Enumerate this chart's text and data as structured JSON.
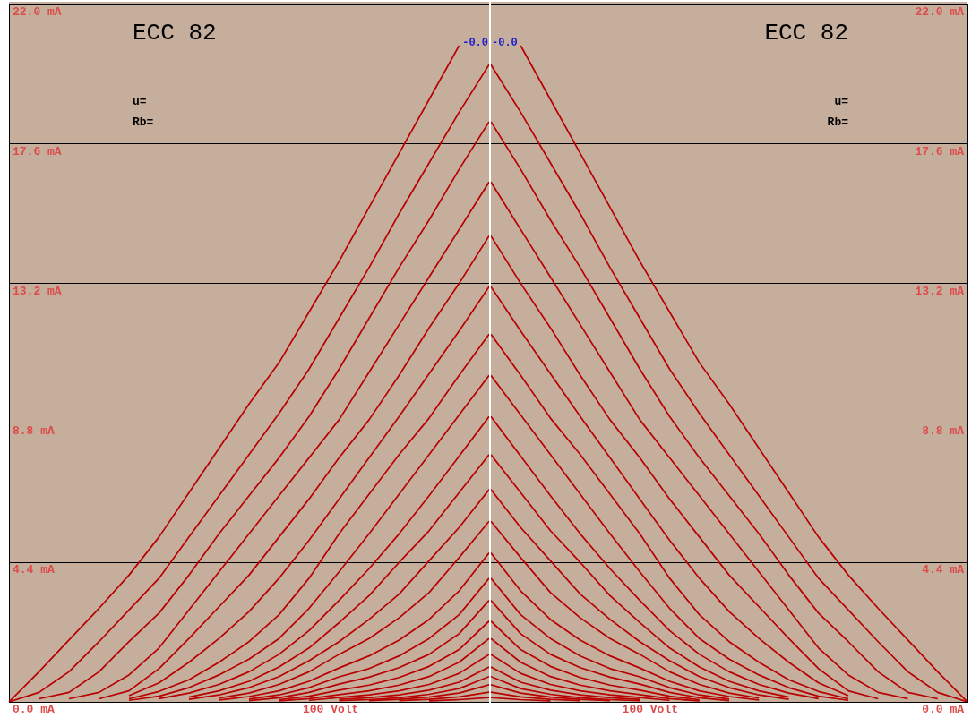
{
  "chart_data": [
    {
      "type": "line",
      "title": "ECC 82",
      "annotations": [
        "u=",
        "Rb=",
        "100 Volt",
        "-0.0"
      ],
      "categories": [
        null,
        null,
        null,
        null,
        null,
        null,
        null,
        null,
        null,
        null,
        null,
        null,
        null,
        null,
        null,
        null,
        null
      ],
      "ylim": [
        0,
        22
      ],
      "yticks": [
        {
          "value": 0,
          "label": "0.0 mA"
        },
        {
          "value": 4.4,
          "label": "4.4 mA"
        },
        {
          "value": 8.8,
          "label": "8.8 mA"
        },
        {
          "value": 13.2,
          "label": "13.2 mA"
        },
        {
          "value": 17.6,
          "label": "17.6 mA"
        },
        {
          "value": 22,
          "label": "22.0 mA"
        }
      ],
      "grid": "y",
      "series": [
        {
          "color": "#b80000",
          "values": [
            0,
            0.95,
            1.95,
            2.95,
            4.0,
            5.2,
            6.6,
            8.0,
            9.4,
            10.7,
            12.3,
            13.9,
            15.6,
            17.3,
            19.0,
            20.7,
            null
          ]
        },
        {
          "color": "#b80000",
          "values": [
            0,
            0.3,
            0.95,
            1.9,
            2.9,
            3.9,
            5.2,
            6.5,
            7.8,
            9.1,
            10.5,
            12.1,
            13.7,
            15.4,
            17.0,
            18.6,
            20.1
          ]
        },
        {
          "color": "#b80000",
          "values": [
            null,
            0.1,
            0.3,
            0.95,
            1.9,
            2.8,
            4.0,
            5.3,
            6.5,
            7.7,
            9.0,
            10.5,
            12.1,
            13.7,
            15.2,
            16.8,
            18.3
          ]
        },
        {
          "color": "#b80000",
          "values": [
            null,
            null,
            0.1,
            0.3,
            0.85,
            1.7,
            2.9,
            4.1,
            5.3,
            6.5,
            7.7,
            8.9,
            10.4,
            11.9,
            13.4,
            14.9,
            16.4
          ]
        },
        {
          "color": "#b80000",
          "values": [
            null,
            null,
            null,
            0.1,
            0.35,
            1.05,
            2.0,
            3.0,
            4.0,
            5.2,
            6.4,
            7.7,
            8.9,
            10.3,
            11.8,
            13.2,
            14.7
          ]
        },
        {
          "color": "#b80000",
          "values": [
            null,
            null,
            null,
            null,
            0.2,
            0.6,
            1.25,
            2.0,
            2.85,
            3.9,
            5.1,
            6.4,
            7.7,
            9.0,
            10.35,
            11.7,
            13.1
          ]
        },
        {
          "color": "#b80000",
          "values": [
            null,
            null,
            null,
            null,
            0.1,
            0.33,
            0.7,
            1.25,
            1.9,
            2.75,
            3.9,
            5.3,
            6.55,
            7.8,
            8.95,
            10.3,
            11.6
          ]
        },
        {
          "color": "#b80000",
          "values": [
            null,
            null,
            null,
            null,
            0.05,
            0.18,
            0.45,
            0.85,
            1.35,
            2.0,
            2.95,
            4.1,
            5.3,
            6.55,
            7.8,
            9.05,
            10.3
          ]
        },
        {
          "color": "#b80000",
          "values": [
            null,
            null,
            null,
            null,
            null,
            0.1,
            0.28,
            0.55,
            0.95,
            1.5,
            2.25,
            3.2,
            4.2,
            5.3,
            6.5,
            7.75,
            9.0
          ]
        },
        {
          "color": "#b80000",
          "values": [
            null,
            null,
            null,
            null,
            null,
            null,
            0.15,
            0.35,
            0.65,
            1.1,
            1.7,
            2.5,
            3.35,
            4.4,
            5.4,
            6.6,
            7.8
          ]
        },
        {
          "color": "#b80000",
          "values": [
            null,
            null,
            null,
            null,
            null,
            null,
            0.08,
            0.22,
            0.45,
            0.8,
            1.3,
            1.9,
            2.6,
            3.4,
            4.45,
            5.5,
            6.7
          ]
        },
        {
          "color": "#b80000",
          "values": [
            null,
            null,
            null,
            null,
            null,
            null,
            null,
            0.12,
            0.28,
            0.55,
            0.95,
            1.5,
            2.0,
            2.65,
            3.45,
            4.55,
            5.7
          ]
        },
        {
          "color": "#b80000",
          "values": [
            null,
            null,
            null,
            null,
            null,
            null,
            null,
            0.06,
            0.17,
            0.35,
            0.65,
            1.07,
            1.45,
            1.95,
            2.6,
            3.5,
            4.7
          ]
        },
        {
          "color": "#b80000",
          "values": [
            null,
            null,
            null,
            null,
            null,
            null,
            null,
            null,
            0.09,
            0.22,
            0.45,
            0.79,
            1.05,
            1.45,
            2.0,
            2.75,
            3.9
          ]
        },
        {
          "color": "#b80000",
          "values": [
            null,
            null,
            null,
            null,
            null,
            null,
            null,
            null,
            0.04,
            0.13,
            0.3,
            0.56,
            0.78,
            1.08,
            1.5,
            2.15,
            3.2
          ]
        },
        {
          "color": "#b80000",
          "values": [
            null,
            null,
            null,
            null,
            null,
            null,
            null,
            null,
            null,
            0.07,
            0.18,
            0.37,
            0.53,
            0.77,
            1.12,
            1.65,
            2.55
          ]
        },
        {
          "color": "#b80000",
          "values": [
            null,
            null,
            null,
            null,
            null,
            null,
            null,
            null,
            null,
            0.03,
            0.1,
            0.23,
            0.35,
            0.53,
            0.8,
            1.25,
            2.0
          ]
        },
        {
          "color": "#b80000",
          "values": [
            null,
            null,
            null,
            null,
            null,
            null,
            null,
            null,
            null,
            null,
            0.05,
            0.14,
            0.22,
            0.35,
            0.55,
            0.9,
            1.5
          ]
        },
        {
          "color": "#b80000",
          "values": [
            null,
            null,
            null,
            null,
            null,
            null,
            null,
            null,
            null,
            null,
            null,
            0.08,
            0.13,
            0.22,
            0.37,
            0.62,
            1.1
          ]
        },
        {
          "color": "#b80000",
          "values": [
            null,
            null,
            null,
            null,
            null,
            null,
            null,
            null,
            null,
            null,
            null,
            0.04,
            0.07,
            0.13,
            0.24,
            0.42,
            0.8
          ]
        },
        {
          "color": "#b80000",
          "values": [
            null,
            null,
            null,
            null,
            null,
            null,
            null,
            null,
            null,
            null,
            null,
            null,
            0.04,
            0.08,
            0.15,
            0.28,
            0.54
          ]
        },
        {
          "color": "#b80000",
          "values": [
            null,
            null,
            null,
            null,
            null,
            null,
            null,
            null,
            null,
            null,
            null,
            null,
            null,
            0.04,
            0.08,
            0.16,
            0.31
          ]
        },
        {
          "color": "#b80000",
          "values": [
            null,
            null,
            null,
            null,
            null,
            null,
            null,
            null,
            null,
            null,
            null,
            null,
            null,
            null,
            0.03,
            0.07,
            0.14
          ]
        }
      ]
    },
    {
      "type": "line",
      "title": "ECC 82",
      "annotations": [
        "u=",
        "Rb=",
        "100 Volt",
        "-0.0"
      ],
      "categories": [
        null,
        null,
        null,
        null,
        null,
        null,
        null,
        null,
        null,
        null,
        null,
        null,
        null,
        null,
        null,
        null,
        null
      ],
      "ylim": [
        0,
        22
      ],
      "yticks": [
        {
          "value": 0,
          "label": "0.0 mA"
        },
        {
          "value": 4.4,
          "label": "4.4 mA"
        },
        {
          "value": 8.8,
          "label": "8.8 mA"
        },
        {
          "value": 13.2,
          "label": "13.2 mA"
        },
        {
          "value": 17.6,
          "label": "17.6 mA"
        },
        {
          "value": 22,
          "label": "22.0 mA"
        }
      ],
      "grid": "y",
      "series": [
        {
          "color": "#b80000",
          "values": [
            null,
            20.7,
            19.0,
            17.3,
            15.6,
            13.9,
            12.3,
            10.7,
            9.4,
            8.0,
            6.6,
            5.2,
            4.0,
            2.95,
            1.95,
            0.95,
            0
          ]
        },
        {
          "color": "#b80000",
          "values": [
            20.1,
            18.6,
            17.0,
            15.4,
            13.7,
            12.1,
            10.5,
            9.1,
            7.8,
            6.5,
            5.2,
            3.9,
            2.9,
            1.9,
            0.95,
            0.3,
            0
          ]
        },
        {
          "color": "#b80000",
          "values": [
            18.3,
            16.8,
            15.2,
            13.7,
            12.1,
            10.5,
            9.0,
            7.7,
            6.5,
            5.3,
            4.0,
            2.8,
            1.9,
            0.95,
            0.3,
            0.1,
            null
          ]
        },
        {
          "color": "#b80000",
          "values": [
            16.4,
            14.9,
            13.4,
            11.9,
            10.4,
            8.9,
            7.7,
            6.5,
            5.3,
            4.1,
            2.9,
            1.7,
            0.85,
            0.3,
            0.1,
            null,
            null
          ]
        },
        {
          "color": "#b80000",
          "values": [
            14.7,
            13.2,
            11.8,
            10.3,
            8.9,
            7.7,
            6.4,
            5.2,
            4.0,
            3.0,
            2.0,
            1.05,
            0.35,
            0.1,
            null,
            null,
            null
          ]
        },
        {
          "color": "#b80000",
          "values": [
            13.1,
            11.7,
            10.35,
            9.0,
            7.7,
            6.4,
            5.1,
            3.9,
            2.85,
            2.0,
            1.25,
            0.6,
            0.2,
            null,
            null,
            null,
            null
          ]
        },
        {
          "color": "#b80000",
          "values": [
            11.6,
            10.3,
            8.95,
            7.8,
            6.55,
            5.3,
            3.9,
            2.75,
            1.9,
            1.25,
            0.7,
            0.33,
            0.1,
            null,
            null,
            null,
            null
          ]
        },
        {
          "color": "#b80000",
          "values": [
            10.3,
            9.05,
            7.8,
            6.55,
            5.3,
            4.1,
            2.95,
            2.0,
            1.35,
            0.85,
            0.45,
            0.18,
            0.05,
            null,
            null,
            null,
            null
          ]
        },
        {
          "color": "#b80000",
          "values": [
            9.0,
            7.75,
            6.5,
            5.3,
            4.2,
            3.2,
            2.25,
            1.5,
            0.95,
            0.55,
            0.28,
            0.1,
            null,
            null,
            null,
            null,
            null
          ]
        },
        {
          "color": "#b80000",
          "values": [
            7.8,
            6.6,
            5.4,
            4.4,
            3.35,
            2.5,
            1.7,
            1.1,
            0.65,
            0.35,
            0.15,
            null,
            null,
            null,
            null,
            null,
            null
          ]
        },
        {
          "color": "#b80000",
          "values": [
            6.7,
            5.5,
            4.45,
            3.4,
            2.6,
            1.9,
            1.3,
            0.8,
            0.45,
            0.22,
            0.08,
            null,
            null,
            null,
            null,
            null,
            null
          ]
        },
        {
          "color": "#b80000",
          "values": [
            5.7,
            4.55,
            3.45,
            2.65,
            2.0,
            1.5,
            0.95,
            0.55,
            0.28,
            0.12,
            null,
            null,
            null,
            null,
            null,
            null,
            null
          ]
        },
        {
          "color": "#b80000",
          "values": [
            4.7,
            3.5,
            2.6,
            1.95,
            1.45,
            1.07,
            0.65,
            0.35,
            0.17,
            0.06,
            null,
            null,
            null,
            null,
            null,
            null,
            null
          ]
        },
        {
          "color": "#b80000",
          "values": [
            3.9,
            2.75,
            2.0,
            1.45,
            1.05,
            0.79,
            0.45,
            0.22,
            0.09,
            null,
            null,
            null,
            null,
            null,
            null,
            null,
            null
          ]
        },
        {
          "color": "#b80000",
          "values": [
            3.2,
            2.15,
            1.5,
            1.08,
            0.78,
            0.56,
            0.3,
            0.13,
            0.04,
            null,
            null,
            null,
            null,
            null,
            null,
            null,
            null
          ]
        },
        {
          "color": "#b80000",
          "values": [
            2.55,
            1.65,
            1.12,
            0.77,
            0.53,
            0.37,
            0.18,
            0.07,
            null,
            null,
            null,
            null,
            null,
            null,
            null,
            null,
            null
          ]
        },
        {
          "color": "#b80000",
          "values": [
            2.0,
            1.25,
            0.8,
            0.53,
            0.35,
            0.23,
            0.1,
            0.03,
            null,
            null,
            null,
            null,
            null,
            null,
            null,
            null,
            null
          ]
        },
        {
          "color": "#b80000",
          "values": [
            1.5,
            0.9,
            0.55,
            0.35,
            0.22,
            0.14,
            0.05,
            null,
            null,
            null,
            null,
            null,
            null,
            null,
            null,
            null,
            null
          ]
        },
        {
          "color": "#b80000",
          "values": [
            1.1,
            0.62,
            0.37,
            0.22,
            0.13,
            0.08,
            null,
            null,
            null,
            null,
            null,
            null,
            null,
            null,
            null,
            null,
            null
          ]
        },
        {
          "color": "#b80000",
          "values": [
            0.8,
            0.42,
            0.24,
            0.13,
            0.07,
            0.04,
            null,
            null,
            null,
            null,
            null,
            null,
            null,
            null,
            null,
            null,
            null
          ]
        },
        {
          "color": "#b80000",
          "values": [
            0.54,
            0.28,
            0.15,
            0.08,
            0.04,
            null,
            null,
            null,
            null,
            null,
            null,
            null,
            null,
            null,
            null,
            null,
            null
          ]
        },
        {
          "color": "#b80000",
          "values": [
            0.31,
            0.16,
            0.08,
            0.04,
            null,
            null,
            null,
            null,
            null,
            null,
            null,
            null,
            null,
            null,
            null,
            null,
            null
          ]
        },
        {
          "color": "#b80000",
          "values": [
            0.14,
            0.07,
            0.03,
            null,
            null,
            null,
            null,
            null,
            null,
            null,
            null,
            null,
            null,
            null,
            null,
            null,
            null
          ]
        }
      ]
    }
  ]
}
